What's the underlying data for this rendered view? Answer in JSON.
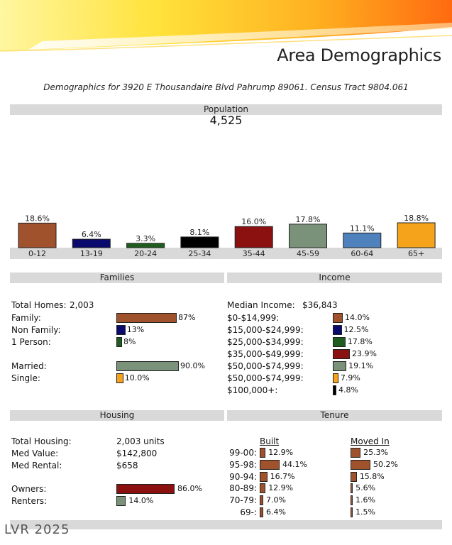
{
  "header": {
    "title": "Area Demographics",
    "subtitle": "Demographics for 3920 E Thousandaire Blvd Pahrump 89061. Census Tract 9804.061"
  },
  "population": {
    "label": "Population",
    "total": "4,525"
  },
  "chart_data": {
    "type": "bar",
    "title": "Population",
    "categories": [
      "0-12",
      "13-19",
      "20-24",
      "25-34",
      "35-44",
      "45-59",
      "60-64",
      "65+"
    ],
    "values": [
      18.6,
      6.4,
      3.3,
      8.1,
      16.0,
      17.8,
      11.1,
      18.8
    ],
    "value_labels": [
      "18.6%",
      "6.4%",
      "3.3%",
      "8.1%",
      "16.0%",
      "17.8%",
      "11.1%",
      "18.8%"
    ],
    "colors": [
      "#a0522d",
      "#0a0a6e",
      "#1f5c1f",
      "#000000",
      "#8b1010",
      "#7a917a",
      "#4f81bd",
      "#f5a31a"
    ],
    "ylim": [
      0,
      18.8
    ],
    "xlabel": "",
    "ylabel": ""
  },
  "families": {
    "header": "Families",
    "total_label": "Total Homes:",
    "total_value": "2,003",
    "rows": [
      {
        "label": "Family:",
        "value": 87,
        "text": "87%",
        "color": "#a0522d"
      },
      {
        "label": "Non Family:",
        "value": 13,
        "text": "13%",
        "color": "#0a0a6e"
      },
      {
        "label": "1 Person:",
        "value": 8,
        "text": "8%",
        "color": "#1f5c1f"
      },
      {
        "label": "Married:",
        "value": 90.0,
        "text": "90.0%",
        "color": "#7a917a"
      },
      {
        "label": "Single:",
        "value": 10.0,
        "text": "10.0%",
        "color": "#f5a31a"
      }
    ]
  },
  "income": {
    "header": "Income",
    "median_label": "Median Income:",
    "median_value": "$36,843",
    "rows": [
      {
        "label": "$0-$14,999:",
        "value": 14.0,
        "text": "14.0%",
        "color": "#a0522d"
      },
      {
        "label": "$15,000-$24,999:",
        "value": 12.5,
        "text": "12.5%",
        "color": "#0a0a6e"
      },
      {
        "label": "$25,000-$34,999:",
        "value": 17.8,
        "text": "17.8%",
        "color": "#1f5c1f"
      },
      {
        "label": "$35,000-$49,999:",
        "value": 23.9,
        "text": "23.9%",
        "color": "#8b1010"
      },
      {
        "label": "$50,000-$74,999:",
        "value": 19.1,
        "text": "19.1%",
        "color": "#7a917a"
      },
      {
        "label": "$50,000-$74,999:",
        "value": 7.9,
        "text": "7.9%",
        "color": "#f5a31a"
      },
      {
        "label": "$100,000+:",
        "value": 4.8,
        "text": "4.8%",
        "color": "#000000"
      }
    ]
  },
  "housing": {
    "header": "Housing",
    "info": [
      {
        "label": "Total Housing:",
        "value": "2,003 units"
      },
      {
        "label": "Med Value:",
        "value": "$142,800"
      },
      {
        "label": "Med Rental:",
        "value": "$658"
      }
    ],
    "rows": [
      {
        "label": "Owners:",
        "value": 86.0,
        "text": "86.0%",
        "color": "#8b1010"
      },
      {
        "label": "Renters:",
        "value": 14.0,
        "text": "14.0%",
        "color": "#7a917a"
      }
    ]
  },
  "tenure": {
    "header": "Tenure",
    "built_header": "Built",
    "moved_header": "Moved In",
    "bar_color": "#a0522d",
    "rows": [
      {
        "label": "99-00:",
        "built": 12.9,
        "built_text": "12.9%",
        "moved": 25.3,
        "moved_text": "25.3%"
      },
      {
        "label": "95-98:",
        "built": 44.1,
        "built_text": "44.1%",
        "moved": 50.2,
        "moved_text": "50.2%"
      },
      {
        "label": "90-94:",
        "built": 16.7,
        "built_text": "16.7%",
        "moved": 15.8,
        "moved_text": "15.8%"
      },
      {
        "label": "80-89:",
        "built": 12.9,
        "built_text": "12.9%",
        "moved": 5.6,
        "moved_text": "5.6%"
      },
      {
        "label": "70-79:",
        "built": 7.0,
        "built_text": "7.0%",
        "moved": 1.6,
        "moved_text": "1.6%"
      },
      {
        "label": "69-:",
        "built": 6.4,
        "built_text": "6.4%",
        "moved": 1.5,
        "moved_text": "1.5%"
      }
    ]
  },
  "watermark": "LVR 2025"
}
